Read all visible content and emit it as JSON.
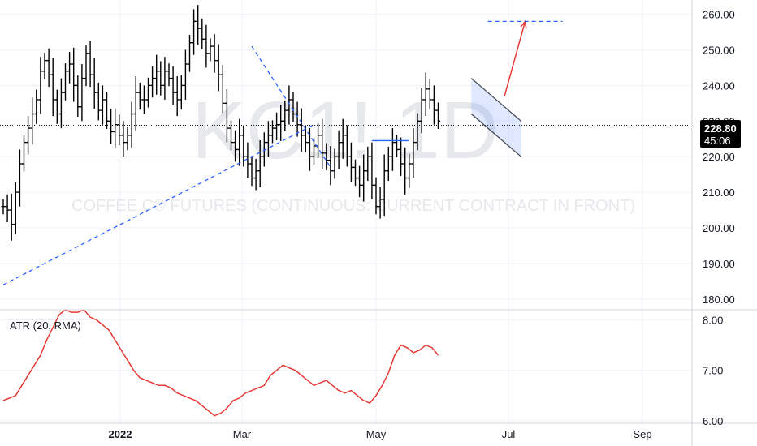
{
  "watermark": {
    "symbol": "KC1! 1D",
    "description": "COFFEE C® FUTURES (CONTINUOUS: CURRENT CONTRACT IN FRONT)"
  },
  "price_tag": {
    "price": "228.80",
    "countdown": "45:06",
    "background": "#000000"
  },
  "chart_data": [
    {
      "type": "ohlc",
      "x_tick_labels": [
        "2022",
        "Mar",
        "May",
        "Jul",
        "Sep"
      ],
      "y_tick_labels": [
        "180.00",
        "190.00",
        "200.00",
        "210.00",
        "220.00",
        "230.00",
        "240.00",
        "250.00",
        "260.00"
      ],
      "ylim": [
        177,
        264
      ],
      "grid": true,
      "bar_color": "#000000",
      "closes": [
        206,
        205,
        201,
        210,
        218,
        224,
        228,
        232,
        236,
        244,
        247,
        243,
        236,
        232,
        238,
        244,
        246,
        240,
        234,
        242,
        249,
        243,
        238,
        233,
        236,
        230,
        227,
        229,
        226,
        224,
        226,
        232,
        238,
        236,
        236,
        240,
        242,
        244,
        240,
        244,
        242,
        238,
        236,
        240,
        246,
        252,
        258,
        256,
        253,
        249,
        251,
        247,
        243,
        235,
        228,
        224,
        222,
        226,
        220,
        218,
        214,
        216,
        220,
        224,
        226,
        228,
        229,
        230,
        233,
        236,
        232,
        229,
        226,
        224,
        220,
        223,
        226,
        221,
        219,
        216,
        220,
        224,
        226,
        220,
        217,
        214,
        212,
        216,
        220,
        212,
        206,
        208,
        216,
        220,
        224,
        222,
        218,
        214,
        218,
        224,
        230,
        236,
        239,
        236,
        233,
        230
      ],
      "last_price": 228.8,
      "current_price_line": 228.8,
      "annotations": [
        {
          "type": "trendline",
          "style": "dashed",
          "color": "#2962ff",
          "from": [
            0,
            184
          ],
          "to": [
            75,
            229
          ]
        },
        {
          "type": "trendline",
          "style": "dashed",
          "color": "#2962ff",
          "from": [
            60,
            251
          ],
          "to": [
            79,
            217
          ]
        },
        {
          "type": "channel",
          "color": "#2962ff",
          "upper": [
            [
              113,
              242
            ],
            [
              125,
              230
            ]
          ],
          "lower": [
            [
              113,
              232
            ],
            [
              125,
              220
            ]
          ]
        },
        {
          "type": "arrow",
          "color": "#e53935",
          "from": [
            121,
            237
          ],
          "to": [
            126,
            258
          ]
        },
        {
          "type": "horizontal",
          "style": "dashed",
          "color": "#2962ff",
          "value": 258,
          "x_from": 117,
          "x_to": 135
        }
      ]
    },
    {
      "type": "line",
      "title": "ATR (20, RMA)",
      "y_tick_labels": [
        "6.00",
        "7.00",
        "8.00"
      ],
      "ylim": [
        5.95,
        8.2
      ],
      "grid": true,
      "color": "#e53935",
      "values": [
        6.4,
        6.45,
        6.5,
        6.7,
        6.9,
        7.1,
        7.3,
        7.6,
        7.85,
        8.1,
        8.2,
        8.15,
        8.15,
        8.2,
        8.05,
        8.0,
        7.9,
        7.8,
        7.6,
        7.4,
        7.2,
        7.0,
        6.85,
        6.8,
        6.75,
        6.7,
        6.7,
        6.65,
        6.55,
        6.5,
        6.45,
        6.4,
        6.3,
        6.2,
        6.1,
        6.15,
        6.25,
        6.4,
        6.45,
        6.55,
        6.6,
        6.65,
        6.7,
        6.9,
        7.0,
        7.1,
        7.05,
        7.0,
        6.9,
        6.8,
        6.7,
        6.75,
        6.8,
        6.7,
        6.6,
        6.55,
        6.6,
        6.5,
        6.4,
        6.35,
        6.5,
        6.7,
        6.95,
        7.3,
        7.5,
        7.45,
        7.35,
        7.4,
        7.5,
        7.45,
        7.3
      ]
    }
  ]
}
